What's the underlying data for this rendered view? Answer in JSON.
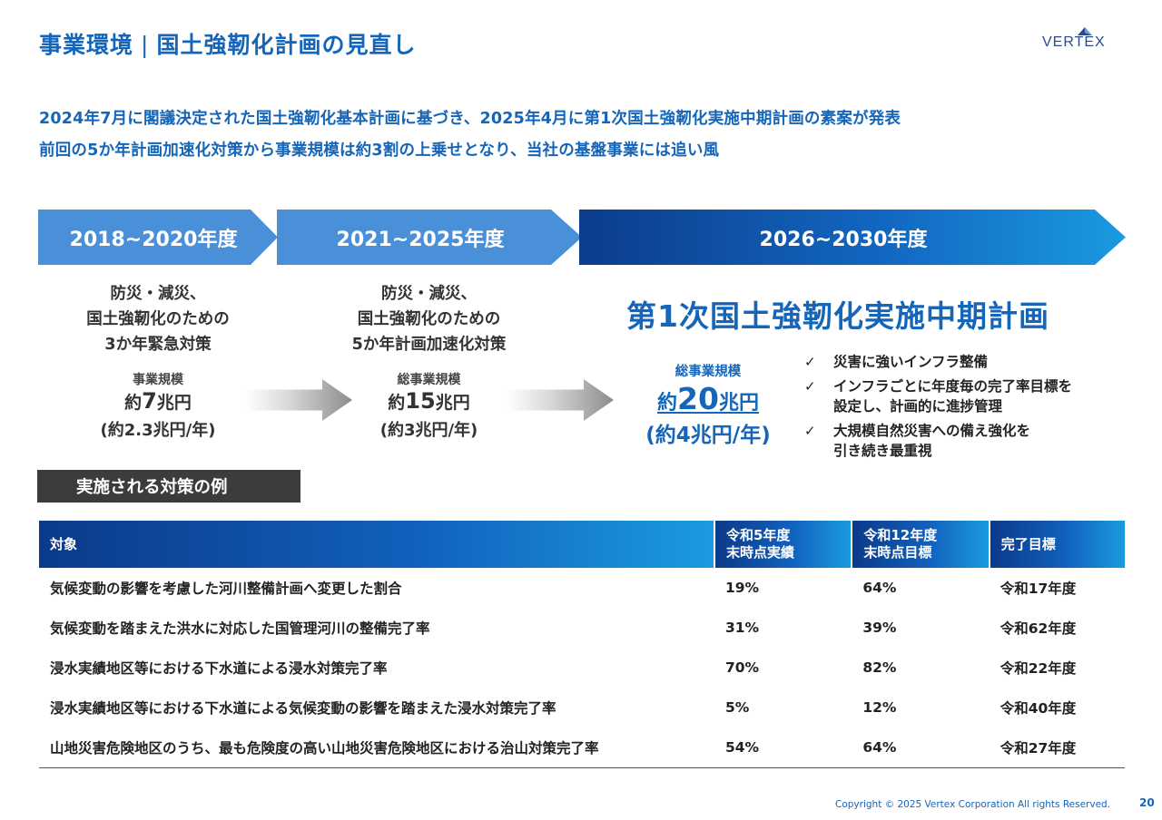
{
  "header": {
    "section": "事業環境",
    "separator": "|",
    "title": "国土強靭化計画の見直し",
    "logo_text": "VERTEX"
  },
  "lead": {
    "line1": "2024年7月に閣議決定された国土強靭化基本計画に基づき、2025年4月に第1次国土強靭化実施中期計画の素案が発表",
    "line2": "前回の5か年計画加速化対策から事業規模は約3割の上乗せとなり、当社の基盤事業には追い風"
  },
  "timeline": [
    {
      "period": "2018~2020年度",
      "desc": [
        "防災・減災、",
        "国土強靭化のための",
        "3か年緊急対策"
      ],
      "scale_label": "事業規模",
      "scale_prefix": "約",
      "scale_number": "7",
      "scale_unit": "兆円",
      "scale_per_year": "(約2.3兆円/年)"
    },
    {
      "period": "2021~2025年度",
      "desc": [
        "防災・減災、",
        "国土強靭化のための",
        "5か年計画加速化対策"
      ],
      "scale_label": "総事業規模",
      "scale_prefix": "約",
      "scale_number": "15",
      "scale_unit": "兆円",
      "scale_per_year": "(約3兆円/年)"
    },
    {
      "period": "2026~2030年度",
      "plan_title": "第1次国土強靭化実施中期計画",
      "scale_label": "総事業規模",
      "scale_prefix": "約",
      "scale_number": "20",
      "scale_unit": "兆円",
      "scale_per_year": "(約4兆円/年)",
      "checks": [
        {
          "mark": "✓",
          "lines": [
            "災害に強いインフラ整備"
          ]
        },
        {
          "mark": "✓",
          "lines": [
            "インフラごとに年度毎の完了率目標を",
            "設定し、計画的に進捗管理"
          ]
        },
        {
          "mark": "✓",
          "lines": [
            "大規模自然災害への備え強化を",
            "引き続き最重視"
          ]
        }
      ]
    }
  ],
  "examples_label": "実施される対策の例",
  "table": {
    "headers": [
      [
        "対象"
      ],
      [
        "令和5年度",
        "末時点実績"
      ],
      [
        "令和12年度",
        "末時点目標"
      ],
      [
        "完了目標"
      ]
    ],
    "rows": [
      [
        "気候変動の影響を考慮した河川整備計画へ変更した割合",
        "19%",
        "64%",
        "令和17年度"
      ],
      [
        "気候変動を踏まえた洪水に対応した国管理河川の整備完了率",
        "31%",
        "39%",
        "令和62年度"
      ],
      [
        "浸水実績地区等における下水道による浸水対策完了率",
        "70%",
        "82%",
        "令和22年度"
      ],
      [
        "浸水実績地区等における下水道による気候変動の影響を踏まえた浸水対策完了率",
        "5%",
        "12%",
        "令和40年度"
      ],
      [
        "山地災害危険地区のうち、最も危険度の高い山地災害危険地区における治山対策完了率",
        "54%",
        "64%",
        "令和27年度"
      ]
    ]
  },
  "footer": {
    "copyright": "Copyright © 2025 Vertex Corporation All rights Reserved.",
    "page_number": "20"
  },
  "colors": {
    "brand_blue": "#1565b8",
    "timeline_light": "#4a90d9",
    "label_dark": "#3c3c3c"
  }
}
